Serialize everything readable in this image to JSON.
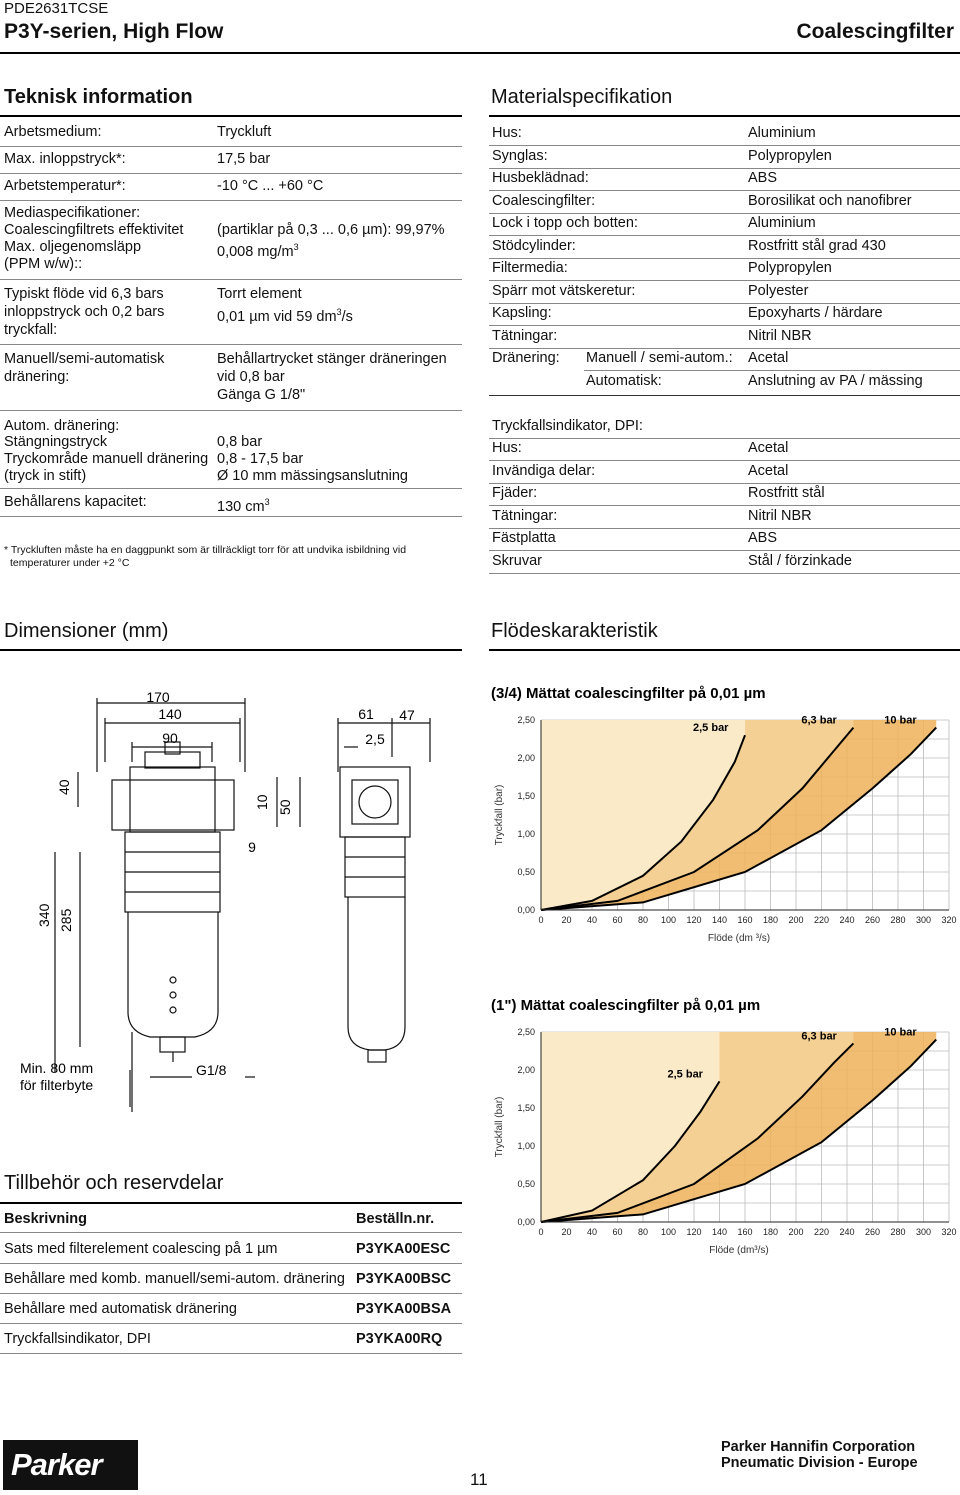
{
  "header": {
    "code": "PDE2631TCSE",
    "series": "P3Y-serien, High Flow",
    "category": "Coalescingfilter"
  },
  "tech": {
    "title": "Teknisk information",
    "r1": {
      "label": "Arbetsmedium:",
      "value": "Tryckluft"
    },
    "r2": {
      "label": "Max. inloppstryck*:",
      "value": "17,5 bar"
    },
    "r3": {
      "label": "Arbetstemperatur*:",
      "value": "-10 °C ... +60 °C"
    },
    "r4": {
      "l1": "Mediaspecifikationer:",
      "l2": "Coalescingfiltrets effektivitet",
      "l3": "Max. oljegenomsläpp",
      "l4": "(PPM w/w)::",
      "v2": "(partiklar på 0,3 ... 0,6 µm): 99,97%",
      "v3": "0,008 mg/m",
      "v3sup": "3"
    },
    "r5": {
      "l1": "Typiskt flöde vid 6,3 bars",
      "l2": "inloppstryck och 0,2 bars",
      "l3": "tryckfall:",
      "v1": "Torrt element",
      "v2": "0,01 µm vid 59 dm",
      "v2sup": "3",
      "v2end": "/s"
    },
    "r6": {
      "l1": "Manuell/semi-automatisk",
      "l2": "dränering:",
      "v1": "Behållartrycket stänger dräneringen",
      "v2": "vid 0,8 bar",
      "v3": "Gänga G 1/8\""
    },
    "r7": {
      "l1": "Autom. dränering:",
      "l2": "Stängningstryck",
      "l3": "Tryckområde manuell dränering",
      "l4": "(tryck in stift)",
      "v2": "0,8 bar",
      "v3": "0,8 - 17,5 bar",
      "v4": "Ø 10 mm mässingsanslutning"
    },
    "r8": {
      "label": "Behållarens kapacitet:",
      "value": "130 cm",
      "sup": "3"
    },
    "footnote1": "* Tryckluften måste ha en daggpunkt som är tillräckligt torr för att undvika isbildning vid",
    "footnote2": "temperaturer under +2 °C"
  },
  "material": {
    "title": "Materialspecifikation",
    "rows": [
      {
        "label": "Hus:",
        "value": "Aluminium"
      },
      {
        "label": "Synglas:",
        "value": "Polypropylen"
      },
      {
        "label": "Husbeklädnad:",
        "value": "ABS"
      },
      {
        "label": "Coalescingfilter:",
        "value": "Borosilikat och nanofibrer"
      },
      {
        "label": "Lock i topp och botten:",
        "value": "Aluminium"
      },
      {
        "label": "Stödcylinder:",
        "value": "Rostfritt stål grad 430"
      },
      {
        "label": "Filtermedia:",
        "value": "Polypropylen"
      },
      {
        "label": "Spärr mot vätskeretur:",
        "value": "Polyester"
      },
      {
        "label": "Kapsling:",
        "value": "Epoxyharts / härdare"
      },
      {
        "label": "Tätningar:",
        "value": "Nitril NBR"
      }
    ],
    "drain": {
      "label": "Dränering:",
      "sub1": "Manuell / semi-autom.:",
      "val1": "Acetal",
      "sub2": "Automatisk:",
      "val2": "Anslutning av PA / mässing"
    },
    "dpi_title": "Tryckfallsindikator, DPI:",
    "dpi_rows": [
      {
        "label": "Hus:",
        "value": "Acetal"
      },
      {
        "label": "Invändiga delar:",
        "value": "Acetal"
      },
      {
        "label": "Fjäder:",
        "value": "Rostfritt stål"
      },
      {
        "label": "Tätningar:",
        "value": "Nitril NBR"
      },
      {
        "label": "Fästplatta",
        "value": "ABS"
      },
      {
        "label": "Skruvar",
        "value": "Stål / förzinkade"
      }
    ]
  },
  "dims": {
    "title": "Dimensioner (mm)",
    "d170": "170",
    "d140": "140",
    "d90": "90",
    "d61": "61",
    "d47": "47",
    "d25": "2,5",
    "d40": "40",
    "d10": "10",
    "d50": "50",
    "d9": "9",
    "d340": "340",
    "d285": "285",
    "min1": "Min. 80 mm",
    "min2": "för filterbyte",
    "g18": "G1/8"
  },
  "accessories": {
    "title": "Tillbehör och reservdelar",
    "col1": "Beskrivning",
    "col2": "Beställn.nr.",
    "rows": [
      {
        "desc": "Sats med filterelement coalescing på 1 µm",
        "nr": "P3YKA00ESC"
      },
      {
        "desc": "Behållare med komb. manuell/semi-autom. dränering",
        "nr": "P3YKA00BSC"
      },
      {
        "desc": "Behållare med automatisk dränering",
        "nr": "P3YKA00BSA"
      },
      {
        "desc": "Tryckfallsindikator, DPI",
        "nr": "P3YKA00RQ"
      }
    ]
  },
  "flow": {
    "title": "Flödeskarakteristik"
  },
  "chart_data": [
    {
      "type": "area",
      "title": "(3/4) Mättat coalescingfilter på 0,01 µm",
      "xlabel": "Flöde (dm ³/s)",
      "ylabel": "Tryckfall (bar)",
      "xlim": [
        0,
        320
      ],
      "ylim": [
        0,
        2.5
      ],
      "xticks": [
        "0",
        "20",
        "40",
        "60",
        "80",
        "100",
        "120",
        "140",
        "160",
        "180",
        "200",
        "220",
        "240",
        "260",
        "280",
        "300",
        "320"
      ],
      "yticks": [
        "0,00",
        "0,50",
        "1,00",
        "1,50",
        "2,00",
        "2,50"
      ],
      "grid": true,
      "series": [
        {
          "name": "2,5 bar",
          "color": "#fbeed0",
          "points": [
            [
              0,
              0
            ],
            [
              40,
              0.12
            ],
            [
              80,
              0.45
            ],
            [
              110,
              0.9
            ],
            [
              135,
              1.45
            ],
            [
              152,
              1.95
            ],
            [
              160,
              2.3
            ]
          ]
        },
        {
          "name": "6,3 bar",
          "color": "#f6d49a",
          "points": [
            [
              0,
              0
            ],
            [
              60,
              0.12
            ],
            [
              120,
              0.5
            ],
            [
              170,
              1.05
            ],
            [
              205,
              1.6
            ],
            [
              230,
              2.1
            ],
            [
              245,
              2.4
            ]
          ]
        },
        {
          "name": "10 bar",
          "color": "#eeb15a",
          "points": [
            [
              0,
              0
            ],
            [
              80,
              0.1
            ],
            [
              160,
              0.5
            ],
            [
              220,
              1.05
            ],
            [
              260,
              1.6
            ],
            [
              290,
              2.05
            ],
            [
              310,
              2.4
            ]
          ]
        }
      ]
    },
    {
      "type": "area",
      "title": "(1\") Mättat coalescingfilter på 0,01 µm",
      "xlabel": "Flöde (dm³/s)",
      "ylabel": "Tryckfall (bar)",
      "xlim": [
        0,
        320
      ],
      "ylim": [
        0,
        2.5
      ],
      "xticks": [
        "0",
        "20",
        "40",
        "60",
        "80",
        "100",
        "120",
        "140",
        "160",
        "180",
        "200",
        "220",
        "240",
        "260",
        "280",
        "300",
        "320"
      ],
      "yticks": [
        "0,00",
        "0,50",
        "1,00",
        "1,50",
        "2,00",
        "2,50"
      ],
      "grid": true,
      "series": [
        {
          "name": "2,5 bar",
          "color": "#fbeed0",
          "points": [
            [
              0,
              0
            ],
            [
              40,
              0.15
            ],
            [
              80,
              0.55
            ],
            [
              105,
              1.0
            ],
            [
              125,
              1.45
            ],
            [
              140,
              1.85
            ]
          ]
        },
        {
          "name": "6,3 bar",
          "color": "#f6d49a",
          "points": [
            [
              0,
              0
            ],
            [
              60,
              0.12
            ],
            [
              120,
              0.5
            ],
            [
              170,
              1.1
            ],
            [
              205,
              1.65
            ],
            [
              230,
              2.1
            ],
            [
              245,
              2.35
            ]
          ]
        },
        {
          "name": "10 bar",
          "color": "#eeb15a",
          "points": [
            [
              0,
              0
            ],
            [
              80,
              0.1
            ],
            [
              160,
              0.5
            ],
            [
              220,
              1.05
            ],
            [
              260,
              1.6
            ],
            [
              290,
              2.05
            ],
            [
              310,
              2.4
            ]
          ]
        }
      ]
    }
  ],
  "footer": {
    "brand": "Parker",
    "page": "11",
    "company": "Parker Hannifin Corporation",
    "division": "Pneumatic Division - Europe"
  }
}
